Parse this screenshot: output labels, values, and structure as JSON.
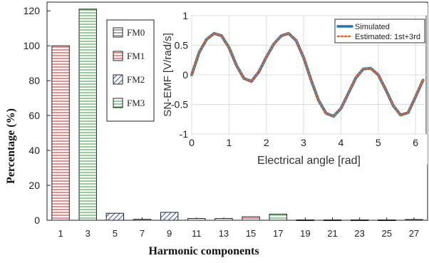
{
  "chart_data": [
    {
      "type": "bar",
      "title": "",
      "xlabel": "Harmonic components",
      "ylabel": "Percentage (%)",
      "categories": [
        "1",
        "3",
        "5",
        "7",
        "9",
        "11",
        "13",
        "15",
        "17",
        "19",
        "21",
        "23",
        "25",
        "27"
      ],
      "ylim": [
        0,
        125
      ],
      "yticks": [
        0,
        20,
        40,
        60,
        80,
        100,
        120
      ],
      "grid": false,
      "legend_position": "top-left",
      "series": [
        {
          "name": "FM0",
          "color": "#555555",
          "hatch": "horizontal",
          "values": [
            null,
            null,
            null,
            0.5,
            null,
            null,
            null,
            null,
            null,
            0.2,
            0.2,
            0.2,
            0.2,
            0.4
          ]
        },
        {
          "name": "FM1",
          "color": "#e31a1c",
          "hatch": "horizontal",
          "values": [
            100,
            null,
            null,
            null,
            null,
            null,
            1,
            2,
            null,
            null,
            null,
            null,
            null,
            null
          ]
        },
        {
          "name": "FM2",
          "color": "#3050b0",
          "hatch": "diagonal",
          "values": [
            null,
            null,
            4,
            null,
            4.5,
            null,
            null,
            null,
            null,
            null,
            null,
            null,
            null,
            null
          ]
        },
        {
          "name": "FM3",
          "color": "#2ca02c",
          "hatch": "horizontal",
          "values": [
            null,
            121,
            null,
            null,
            null,
            1,
            null,
            null,
            3.5,
            null,
            null,
            null,
            null,
            null
          ]
        }
      ]
    },
    {
      "type": "line",
      "title": "",
      "xlabel": "Electrical angle [rad]",
      "ylabel": "SN-EMF [V/rad/s]",
      "xlim": [
        0,
        6.2832
      ],
      "ylim": [
        -1,
        1
      ],
      "xticks": [
        0,
        1,
        2,
        3,
        4,
        5,
        6
      ],
      "yticks": [
        -1,
        -0.5,
        0,
        0.5,
        1
      ],
      "grid": true,
      "legend_position": "top-right",
      "series": [
        {
          "name": "Simulated",
          "color": "#1f77b4",
          "style": "solid",
          "x": [
            0,
            0.2,
            0.4,
            0.6,
            0.8,
            1,
            1.2,
            1.4,
            1.6,
            1.8,
            2,
            2.2,
            2.4,
            2.6,
            2.8,
            3,
            3.2,
            3.4,
            3.6,
            3.8,
            4,
            4.2,
            4.4,
            4.6,
            4.8,
            5,
            5.2,
            5.4,
            5.6,
            5.8,
            6,
            6.2
          ],
          "y": [
            0,
            0.38,
            0.6,
            0.7,
            0.66,
            0.46,
            0.16,
            -0.06,
            -0.11,
            0.05,
            0.3,
            0.52,
            0.66,
            0.7,
            0.58,
            0.29,
            -0.09,
            -0.43,
            -0.65,
            -0.7,
            -0.57,
            -0.31,
            -0.05,
            0.1,
            0.11,
            0,
            -0.25,
            -0.52,
            -0.68,
            -0.64,
            -0.37,
            -0.09
          ]
        },
        {
          "name": "Estimated: 1st+3rd",
          "color": "#e8652a",
          "style": "dotted",
          "x": [
            0,
            0.2,
            0.4,
            0.6,
            0.8,
            1,
            1.2,
            1.4,
            1.6,
            1.8,
            2,
            2.2,
            2.4,
            2.6,
            2.8,
            3,
            3.2,
            3.4,
            3.6,
            3.8,
            4,
            4.2,
            4.4,
            4.6,
            4.8,
            5,
            5.2,
            5.4,
            5.6,
            5.8,
            6,
            6.2
          ],
          "y": [
            0,
            0.38,
            0.6,
            0.7,
            0.66,
            0.46,
            0.16,
            -0.06,
            -0.11,
            0.05,
            0.3,
            0.52,
            0.66,
            0.7,
            0.58,
            0.29,
            -0.09,
            -0.43,
            -0.65,
            -0.7,
            -0.57,
            -0.31,
            -0.05,
            0.1,
            0.11,
            0,
            -0.25,
            -0.52,
            -0.68,
            -0.64,
            -0.37,
            -0.09
          ]
        }
      ]
    }
  ]
}
